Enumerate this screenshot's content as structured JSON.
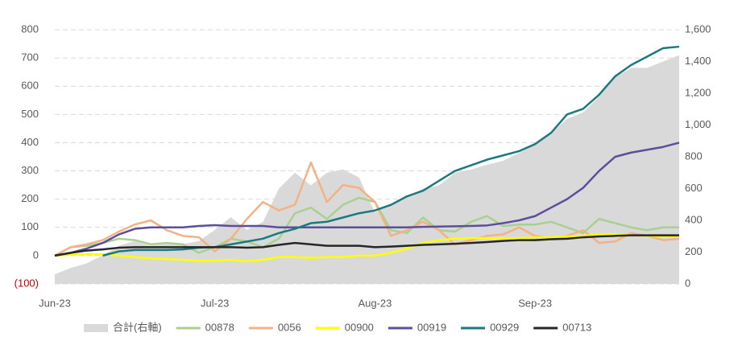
{
  "chart_data": {
    "type": "line",
    "categories": [
      "Jun-23",
      null,
      null,
      null,
      null,
      null,
      null,
      null,
      null,
      null,
      "Jul-23",
      null,
      null,
      null,
      null,
      null,
      null,
      null,
      null,
      null,
      "Aug-23",
      null,
      null,
      null,
      null,
      null,
      null,
      null,
      null,
      null,
      "Sep-23",
      null,
      null,
      null,
      null,
      null,
      null,
      null,
      null,
      null
    ],
    "series": [
      {
        "name": "合計(右軸)",
        "color": "#d9d9d9",
        "axis": "y2",
        "kind": "area",
        "values": [
          60,
          100,
          130,
          180,
          240,
          270,
          240,
          250,
          250,
          270,
          340,
          420,
          340,
          390,
          600,
          700,
          620,
          700,
          720,
          670,
          450,
          500,
          550,
          600,
          620,
          700,
          720,
          750,
          775,
          825,
          875,
          950,
          1040,
          1080,
          1180,
          1300,
          1360,
          1360,
          1400,
          1440
        ]
      },
      {
        "name": "00878",
        "color": "#a9d18e",
        "values": [
          0,
          30,
          35,
          45,
          60,
          55,
          40,
          45,
          40,
          10,
          30,
          60,
          50,
          30,
          60,
          150,
          170,
          130,
          180,
          205,
          190,
          90,
          80,
          135,
          90,
          85,
          120,
          140,
          105,
          110,
          110,
          120,
          100,
          80,
          130,
          115,
          100,
          90,
          100,
          100
        ]
      },
      {
        "name": "0056",
        "color": "#f4b183",
        "values": [
          0,
          30,
          40,
          55,
          85,
          110,
          125,
          90,
          70,
          65,
          15,
          60,
          130,
          190,
          160,
          180,
          330,
          190,
          250,
          240,
          190,
          70,
          90,
          120,
          90,
          40,
          55,
          70,
          75,
          100,
          70,
          60,
          70,
          90,
          45,
          50,
          80,
          70,
          55,
          60
        ]
      },
      {
        "name": "00900",
        "color": "#ffff00",
        "values": [
          0,
          3,
          5,
          5,
          0,
          -5,
          -10,
          -12,
          -15,
          -18,
          -18,
          -15,
          -20,
          -15,
          -5,
          -5,
          -8,
          -5,
          -5,
          0,
          0,
          10,
          25,
          45,
          55,
          60,
          62,
          62,
          62,
          62,
          65,
          65,
          68,
          70,
          75,
          75,
          72,
          70,
          68,
          70
        ]
      },
      {
        "name": "00919",
        "color": "#5b4f9b",
        "values": [
          0,
          10,
          25,
          45,
          75,
          95,
          100,
          100,
          100,
          105,
          108,
          105,
          105,
          105,
          100,
          100,
          100,
          100,
          100,
          100,
          100,
          100,
          100,
          102,
          103,
          104,
          105,
          107,
          115,
          125,
          140,
          170,
          200,
          240,
          300,
          350,
          365,
          375,
          385,
          400
        ]
      },
      {
        "name": "00929",
        "color": "#1a7a80",
        "values": [
          null,
          null,
          null,
          0,
          15,
          20,
          20,
          20,
          22,
          28,
          30,
          40,
          50,
          60,
          80,
          95,
          115,
          120,
          135,
          150,
          160,
          180,
          210,
          230,
          265,
          300,
          320,
          340,
          355,
          370,
          395,
          435,
          500,
          520,
          570,
          635,
          675,
          705,
          735,
          740
        ]
      },
      {
        "name": "00713",
        "color": "#262626",
        "values": [
          0,
          10,
          18,
          22,
          28,
          30,
          30,
          30,
          30,
          30,
          30,
          30,
          28,
          30,
          38,
          45,
          40,
          35,
          35,
          35,
          30,
          32,
          35,
          38,
          40,
          42,
          45,
          48,
          52,
          55,
          55,
          58,
          60,
          65,
          68,
          70,
          72,
          72,
          72,
          72
        ]
      }
    ],
    "ylim": [
      -100,
      800
    ],
    "yticks": [
      {
        "value": -100,
        "label": "(100)"
      },
      0,
      100,
      200,
      300,
      400,
      500,
      600,
      700,
      800
    ],
    "y2lim": [
      0,
      1600
    ],
    "y2ticks": [
      0,
      200,
      400,
      600,
      800,
      {
        "value": 1000,
        "label": "1,000"
      },
      {
        "value": 1200,
        "label": "1,200"
      },
      {
        "value": 1400,
        "label": "1,400"
      },
      {
        "value": 1600,
        "label": "1,600"
      }
    ],
    "negative_label_color": "#c00000",
    "grid": true,
    "legend": "bottom"
  }
}
